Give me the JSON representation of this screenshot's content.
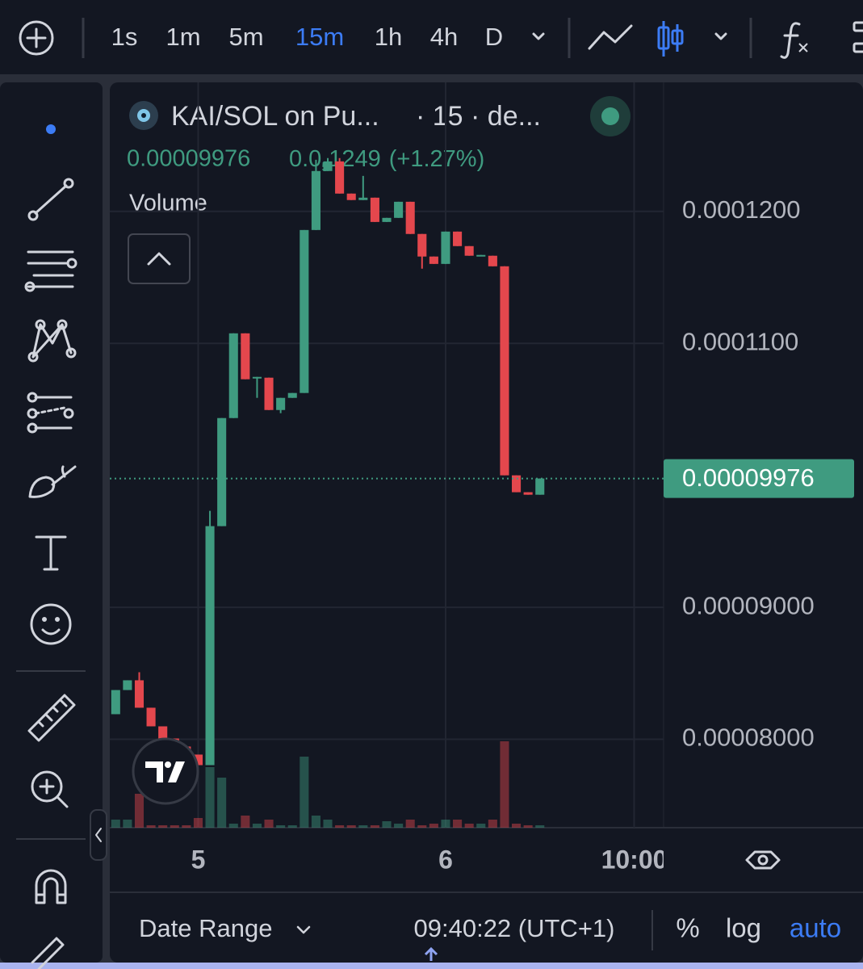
{
  "toolbar": {
    "intervals": [
      "1s",
      "1m",
      "5m",
      "15m",
      "1h",
      "4h",
      "D"
    ],
    "active_interval": "15m"
  },
  "legend": {
    "symbol": "KAI/SOL on Pu...",
    "interval": "· 15 · de...",
    "change_lead": "0.0",
    "change_sub": "5",
    "change_tail": "1249",
    "change_pct": "(+1.27%)",
    "volume": "Volume"
  },
  "chart_data": {
    "type": "candlestick",
    "up_color": "#3f9b80",
    "down_color": "#e4474d",
    "categories": [
      null,
      null,
      null,
      null,
      null,
      null,
      null,
      "5",
      null,
      null,
      null,
      null,
      null,
      null,
      null,
      null,
      null,
      null,
      null,
      null,
      null,
      null,
      null,
      null,
      null,
      null,
      null,
      null,
      "6",
      null,
      null,
      null,
      null,
      null,
      null,
      null,
      null,
      null,
      null,
      null,
      null,
      null,
      null,
      null,
      "10:00",
      null,
      null
    ],
    "open": [
      8.19e-05,
      8.373e-05,
      8.447e-05,
      8.239e-05,
      8.098e-05,
      8.006e-05,
      7.945e-05,
      7.884e-05,
      7.804e-05,
      9.615e-05,
      0.00010434,
      0.00011076,
      0.0001074,
      0.0001074,
      0.00010495,
      0.00010587,
      0.00010624,
      0.00011859,
      0.00012306,
      0.00012379,
      0.00012135,
      0.00012086,
      0.00012104,
      0.0001192,
      0.00011951,
      0.00012073,
      0.00011829,
      0.00011658,
      0.00011602,
      0.00011847,
      0.00011737,
      0.00011664,
      0.00011664,
      0.00011584,
      0.0001,
      9.872e-05,
      9.853e-05,
      null,
      null,
      null,
      null,
      null,
      null,
      null,
      null,
      null,
      null
    ],
    "high": [
      8.373e-05,
      8.447e-05,
      8.508e-05,
      8.239e-05,
      8.098e-05,
      8.006e-05,
      7.945e-05,
      7.884e-05,
      9.731e-05,
      0.00010434,
      0.00011076,
      0.00011076,
      0.00010746,
      0.0001074,
      0.00010587,
      0.00010624,
      0.00011859,
      0.00012391,
      0.00012404,
      0.00012404,
      0.00012135,
      0.00012269,
      0.00012104,
      0.00011951,
      0.00012073,
      0.00012073,
      0.00011829,
      0.00011658,
      0.00011847,
      0.00011847,
      0.00011737,
      0.0001167,
      0.00011664,
      0.00011584,
      0.0001,
      9.872e-05,
      9.976e-05,
      null,
      null,
      null,
      null,
      null,
      null,
      null,
      null,
      null,
      null
    ],
    "low": [
      8.19e-05,
      8.373e-05,
      8.239e-05,
      8.098e-05,
      8.006e-05,
      7.945e-05,
      7.884e-05,
      7.804e-05,
      7.804e-05,
      9.615e-05,
      0.00010434,
      0.00010728,
      0.00010587,
      0.00010495,
      0.00010471,
      0.00010587,
      0.00010624,
      0.00011859,
      0.00012306,
      0.00012135,
      0.00012086,
      0.00012086,
      0.0001192,
      0.0001192,
      0.00011951,
      0.00011829,
      0.00011566,
      0.00011602,
      0.00011602,
      0.00011737,
      0.00011664,
      0.00011664,
      0.00011584,
      0.0001,
      9.872e-05,
      9.853e-05,
      9.853e-05,
      null,
      null,
      null,
      null,
      null,
      null,
      null,
      null,
      null,
      null
    ],
    "close": [
      8.373e-05,
      8.447e-05,
      8.239e-05,
      8.098e-05,
      8.006e-05,
      7.945e-05,
      7.884e-05,
      7.804e-05,
      9.615e-05,
      0.00010434,
      0.00011076,
      0.00010728,
      0.00010746,
      0.00010495,
      0.00010587,
      0.00010624,
      0.00011859,
      0.00012306,
      0.00012379,
      0.00012135,
      0.00012086,
      0.00012104,
      0.0001192,
      0.00011951,
      0.00012073,
      0.00011829,
      0.00011658,
      0.00011602,
      0.00011847,
      0.00011737,
      0.00011664,
      0.0001167,
      0.00011584,
      0.0001,
      9.872e-05,
      9.853e-05,
      9.976e-05,
      null,
      null,
      null,
      null,
      null,
      null,
      null,
      null,
      null,
      null
    ],
    "volume": [
      10,
      10,
      42,
      3,
      3,
      3,
      3,
      12,
      75,
      62,
      5,
      15,
      5,
      10,
      3,
      3,
      88,
      15,
      10,
      3,
      3,
      3,
      3,
      8,
      5,
      10,
      3,
      5,
      10,
      10,
      5,
      5,
      10,
      107,
      5,
      3,
      3,
      null,
      null,
      null,
      null,
      null,
      null,
      null,
      null,
      null,
      null
    ],
    "last_price": 9.976e-05,
    "ylim": [
      7.33e-05,
      0.0001299
    ],
    "yticks": [
      {
        "value": 8e-05,
        "label": "0.00008000"
      },
      {
        "value": 9e-05,
        "label": "0.00009000"
      },
      {
        "value": 0.00011,
        "label": "0.0001100"
      },
      {
        "value": 0.00012,
        "label": "0.0001200"
      }
    ],
    "grid": true
  },
  "footer": {
    "date_range": "Date Range",
    "time": "09:40:22 (UTC+1)",
    "percent": "%",
    "log": "log",
    "auto": "auto"
  }
}
